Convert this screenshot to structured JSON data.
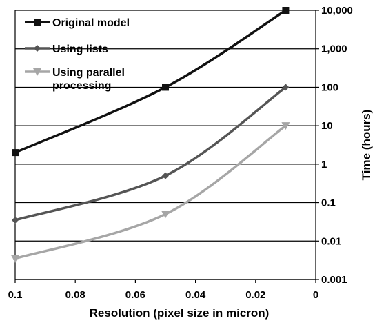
{
  "chart_data": {
    "type": "line",
    "title": "",
    "xlabel": "Resolution (pixel size in micron)",
    "ylabel": "Time (hours)",
    "xlim": [
      0.1,
      0
    ],
    "x_reversed": true,
    "ylim": [
      0.001,
      10000
    ],
    "yscale": "log",
    "grid": "horizontal",
    "legend_position": "top-left",
    "x_ticks": [
      "0.1",
      "0.08",
      "0.06",
      "0.04",
      "0.02",
      "0"
    ],
    "y_ticks": [
      "0.001",
      "0.01",
      "0.1",
      "1",
      "10",
      "100",
      "1,000",
      "10,000"
    ],
    "series": [
      {
        "name": "Original model",
        "color": "#111111",
        "marker": "square",
        "x": [
          0.1,
          0.05,
          0.01
        ],
        "y": [
          2,
          100,
          10000
        ]
      },
      {
        "name": "Using lists",
        "color": "#555555",
        "marker": "diamond",
        "x": [
          0.1,
          0.05,
          0.01
        ],
        "y": [
          0.035,
          0.5,
          100
        ]
      },
      {
        "name": "Using parallel processing",
        "legend_lines": [
          "Using parallel",
          "processing"
        ],
        "color": "#a6a6a6",
        "marker": "triangle-down",
        "x": [
          0.1,
          0.05,
          0.01
        ],
        "y": [
          0.0035,
          0.05,
          10
        ]
      }
    ]
  }
}
